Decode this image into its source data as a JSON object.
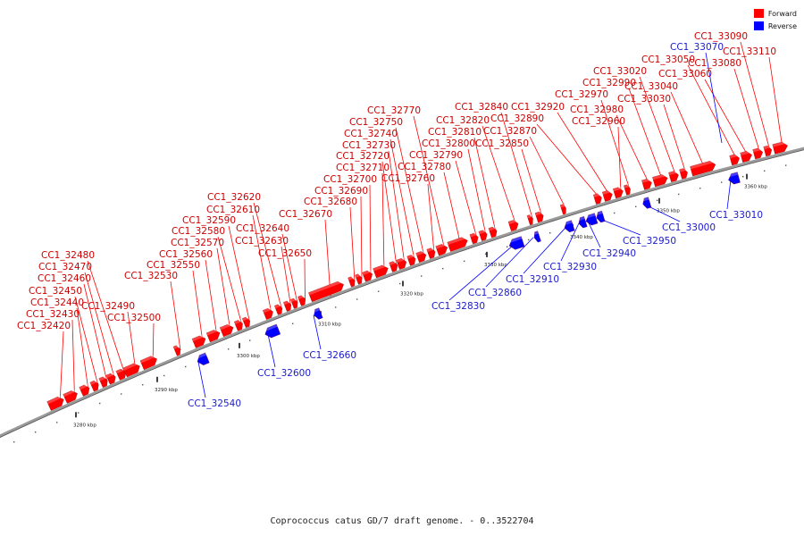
{
  "colors": {
    "forward": "#ff0000",
    "reverse": "#0000ff",
    "backbone": "#9a9a9a"
  },
  "legend": {
    "forward_label": "Forward",
    "reverse_label": "Reverse"
  },
  "caption": "Coprococcus catus GD/7 draft genome. - 0..3522704",
  "ticks": [
    "3280 kbp",
    "3290 kbp",
    "3300 kbp",
    "3310 kbp",
    "3320 kbp",
    "3330 kbp",
    "3340 kbp",
    "3350 kbp",
    "3360 kbp"
  ],
  "forward_genes": [
    "CC1_32420",
    "CC1_32430",
    "CC1_32440",
    "CC1_32450",
    "CC1_32460",
    "CC1_32470",
    "CC1_32480",
    "CC1_32490",
    "CC1_32500",
    "CC1_32530",
    "CC1_32550",
    "CC1_32560",
    "CC1_32570",
    "CC1_32580",
    "CC1_32590",
    "CC1_32610",
    "CC1_32620",
    "CC1_32630",
    "CC1_32640",
    "CC1_32650",
    "CC1_32670",
    "CC1_32680",
    "CC1_32690",
    "CC1_32700",
    "CC1_32710",
    "CC1_32720",
    "CC1_32730",
    "CC1_32740",
    "CC1_32750",
    "CC1_32760",
    "CC1_32770",
    "CC1_32780",
    "CC1_32790",
    "CC1_32800",
    "CC1_32810",
    "CC1_32820",
    "CC1_32840",
    "CC1_32850",
    "CC1_32870",
    "CC1_32890",
    "CC1_32920",
    "CC1_32960",
    "CC1_32970",
    "CC1_32980",
    "CC1_32990",
    "CC1_33020",
    "CC1_33030",
    "CC1_33040",
    "CC1_33050",
    "CC1_33060",
    "CC1_33080",
    "CC1_33090",
    "CC1_33110"
  ],
  "reverse_genes": [
    "CC1_32540",
    "CC1_32600",
    "CC1_32660",
    "CC1_32830",
    "CC1_32860",
    "CC1_32910",
    "CC1_32930",
    "CC1_32940",
    "CC1_32950",
    "CC1_33000",
    "CC1_33010",
    "CC1_33070"
  ]
}
